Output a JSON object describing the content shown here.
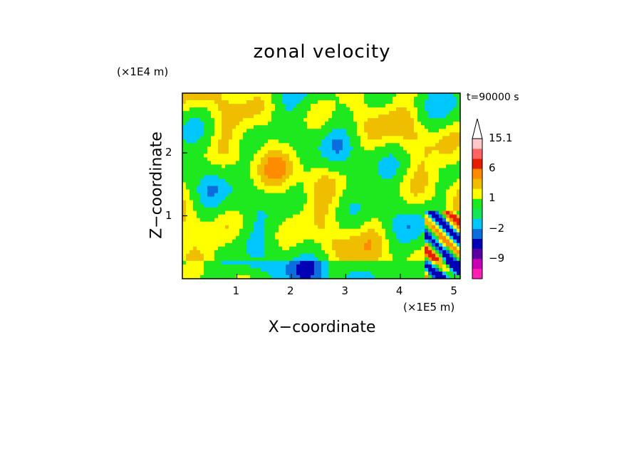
{
  "chart_data": {
    "type": "heatmap",
    "title": "zonal velocity",
    "xlabel": "X−coordinate",
    "ylabel": "Z−coordinate",
    "x_unit": "(×1E5 m)",
    "y_unit": "(×1E4 m)",
    "time_label": "t=90000 s",
    "xlim": [
      0,
      5.1
    ],
    "ylim": [
      0,
      2.95
    ],
    "x_ticks": [
      "1",
      "2",
      "3",
      "4",
      "5"
    ],
    "y_ticks": [
      "1",
      "2"
    ],
    "colorbar": {
      "labels": [
        "15.1",
        "6",
        "1",
        "−2",
        "−9"
      ],
      "label_values": [
        15.1,
        6,
        1,
        -2,
        -9
      ],
      "levels": [
        -15,
        -12,
        -9,
        -6,
        -3,
        -2,
        -1,
        0,
        1,
        2,
        3,
        6,
        9,
        12,
        15.1
      ],
      "colors": [
        "#ff1fb4",
        "#c800b4",
        "#5a00a0",
        "#0000b4",
        "#0a6edc",
        "#00c8ff",
        "#14e65a",
        "#1ee81e",
        "#ffff00",
        "#f0be00",
        "#ff8c00",
        "#e61e00",
        "#ff6464",
        "#ffc8c8"
      ]
    },
    "dominant_values": "mostly between −1 and 3, with extremes near the lower right corner",
    "colors": {
      "background": "#ffffff",
      "green": "#1ee81e",
      "yellow": "#ffff00",
      "orange": "#f0be00",
      "cyan": "#00c8ff",
      "blue": "#0000b4"
    }
  }
}
